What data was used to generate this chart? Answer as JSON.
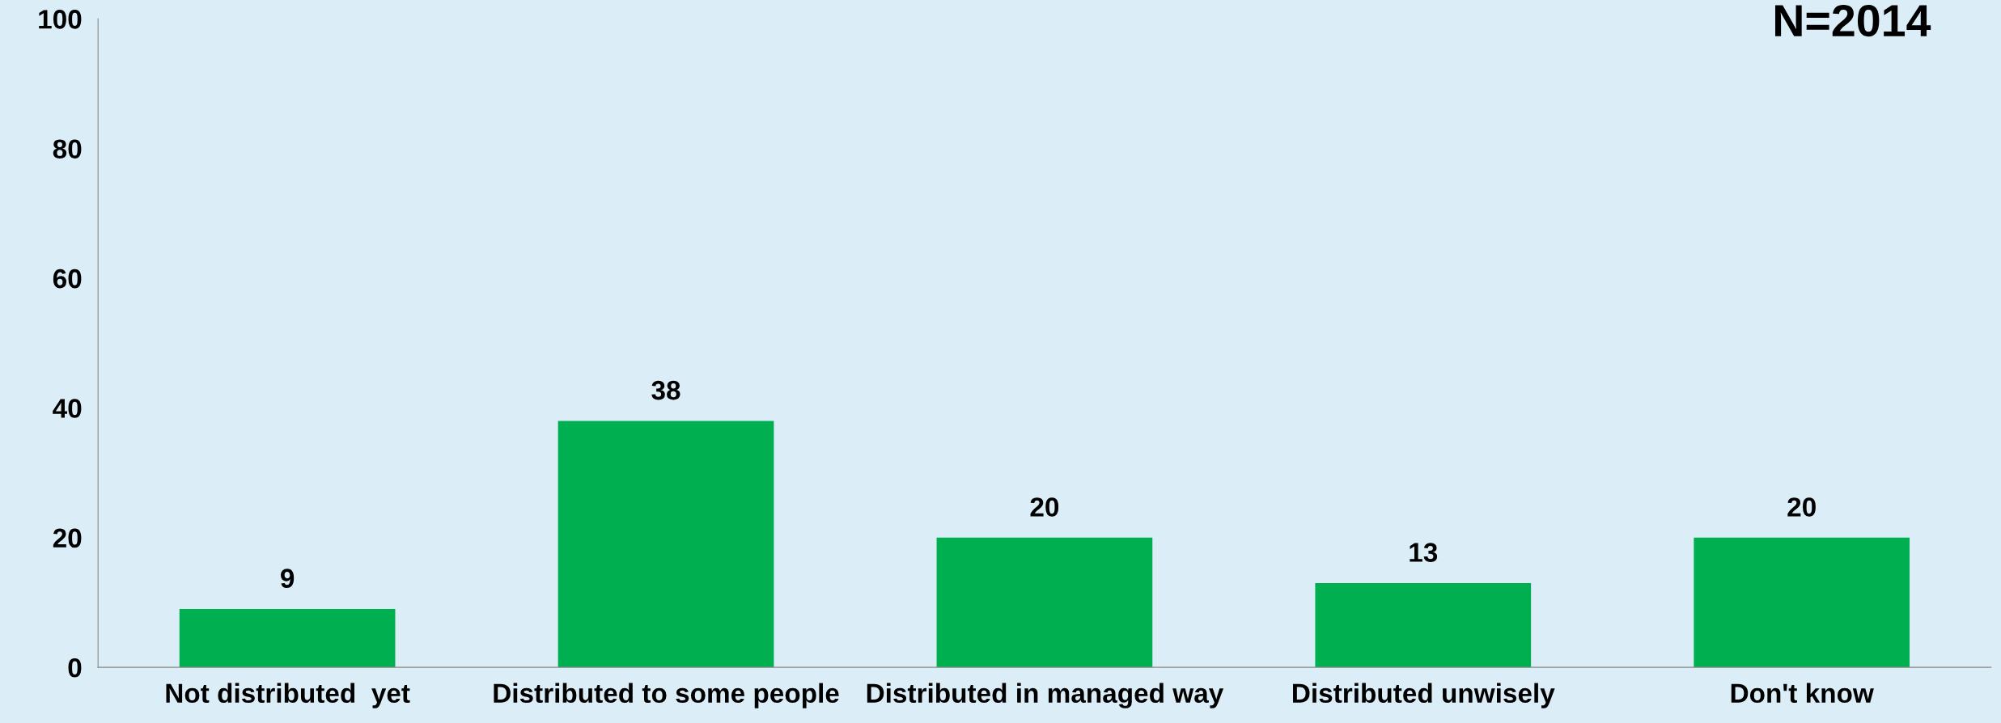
{
  "chart_data": {
    "type": "bar",
    "categories": [
      "Not distributed  yet",
      "Distributed to some people",
      "Distributed in managed way",
      "Distributed unwisely",
      "Don't know"
    ],
    "values": [
      9,
      38,
      20,
      13,
      20
    ],
    "color": "#00b050",
    "ylim": [
      0,
      100
    ],
    "yticks": [
      0,
      20,
      40,
      60,
      80,
      100
    ],
    "data_labels": true,
    "grid": false,
    "legend": false,
    "annotations": [
      "N=2014"
    ]
  }
}
